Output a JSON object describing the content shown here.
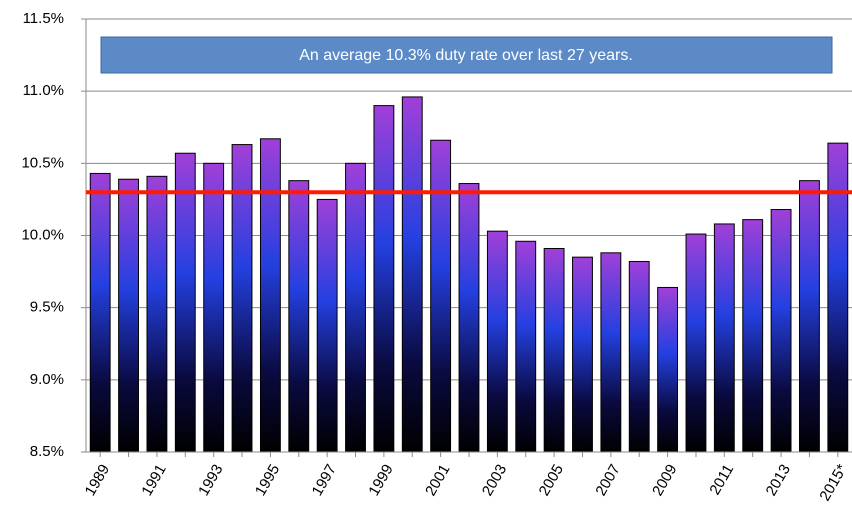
{
  "chart_data": {
    "type": "bar",
    "categories": [
      "1989",
      null,
      "1991",
      null,
      "1993",
      null,
      "1995",
      null,
      "1997",
      null,
      "1999",
      null,
      "2001",
      null,
      "2003",
      null,
      "2005",
      null,
      "2007",
      null,
      "2009",
      null,
      "2011",
      null,
      "2013",
      null,
      "2015*"
    ],
    "values": [
      10.43,
      10.39,
      10.41,
      10.57,
      10.5,
      10.63,
      10.67,
      10.38,
      10.25,
      10.5,
      10.9,
      10.96,
      10.66,
      10.36,
      10.03,
      9.96,
      9.91,
      9.85,
      9.88,
      9.82,
      9.64,
      10.01,
      10.08,
      10.11,
      10.18,
      10.38,
      10.64
    ],
    "ylim": [
      8.5,
      11.5
    ],
    "yticks": [
      {
        "value": 8.5,
        "label": "8.5%"
      },
      {
        "value": 9.0,
        "label": "9.0%"
      },
      {
        "value": 9.5,
        "label": "9.5%"
      },
      {
        "value": 10.0,
        "label": "10.0%"
      },
      {
        "value": 10.5,
        "label": "10.5%"
      },
      {
        "value": 11.0,
        "label": "11.0%"
      },
      {
        "value": 11.5,
        "label": "11.5%"
      }
    ],
    "grid": true,
    "average_line": {
      "value": 10.3,
      "color": "#ff1a00"
    },
    "annotation": "An average 10.3% duty rate over last 27 years."
  }
}
